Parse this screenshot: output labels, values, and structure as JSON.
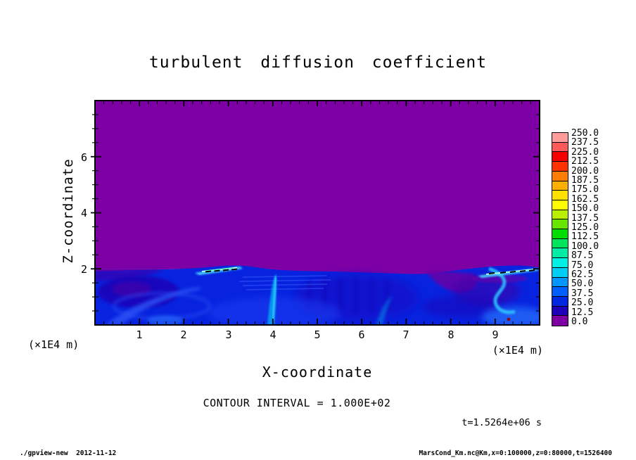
{
  "title": "turbulent diffusion coefficient",
  "axes": {
    "x": {
      "label": "X-coordinate",
      "unit_left": "(×1E4 m)",
      "unit_right": "(×1E4 m)",
      "ticks": [
        "1",
        "2",
        "3",
        "4",
        "5",
        "6",
        "7",
        "8",
        "9"
      ]
    },
    "y": {
      "label": "Z-coordinate",
      "ticks": [
        "6",
        "4",
        "2"
      ]
    }
  },
  "annotations": {
    "contour_interval": "CONTOUR INTERVAL = 1.000E+02",
    "time": "t=1.5264e+06 s"
  },
  "footer": {
    "left": "./gpview-new  2012-11-12",
    "right": "MarsCond_Km.nc@Km,x=0:100000,z=0:80000,t=1526400"
  },
  "colorbar": {
    "labels": [
      "250.0",
      "237.5",
      "225.0",
      "212.5",
      "200.0",
      "187.5",
      "175.0",
      "162.5",
      "150.0",
      "137.5",
      "125.0",
      "112.5",
      "100.0",
      "87.5",
      "75.0",
      "62.5",
      "50.0",
      "37.5",
      "25.0",
      "12.5",
      "0.0"
    ],
    "colors": [
      "#FF9B9B",
      "#FF5A5A",
      "#F50000",
      "#FF3200",
      "#FF7D00",
      "#FFAF00",
      "#FFE100",
      "#FFFF00",
      "#B9F000",
      "#69E600",
      "#00DC00",
      "#00E55A",
      "#00EBA5",
      "#00F0E6",
      "#00CDF5",
      "#0096FF",
      "#0060FF",
      "#0028E1",
      "#1E00B9",
      "#7D00A5"
    ]
  },
  "chart_data": {
    "type": "heatmap",
    "title": "turbulent diffusion coefficient",
    "xlabel": "X-coordinate",
    "ylabel": "Z-coordinate",
    "x_unit": "(×1E4 m)",
    "y_unit": "(×1E4 m)",
    "xlim": [
      0,
      10
    ],
    "ylim": [
      0,
      8
    ],
    "x_ticks": [
      1,
      2,
      3,
      4,
      5,
      6,
      7,
      8,
      9
    ],
    "x_minor_step": 0.2,
    "y_ticks": [
      2,
      4,
      6
    ],
    "y_minor_step": 0.5,
    "contour_interval": 100.0,
    "time_seconds": 1526400,
    "levels": [
      0,
      12.5,
      25,
      37.5,
      50,
      62.5,
      75,
      87.5,
      100,
      112.5,
      125,
      137.5,
      150,
      162.5,
      175,
      187.5,
      200,
      212.5,
      225,
      237.5,
      250
    ],
    "background_color": "#7D00A5",
    "field_summary": {
      "upper_region": {
        "z_range_x1E4m": [
          2,
          8
        ],
        "value": 0,
        "color": "#7D00A5",
        "note": "uniform zero diffusion coefficient above boundary layer"
      },
      "boundary_layer": {
        "z_range_x1E4m": [
          0,
          2
        ],
        "value_range": [
          0,
          100
        ],
        "note": "turbulent eddies, mostly 12.5-62.5 (blues) with cyan plumes"
      },
      "maxima": [
        {
          "x_x1E4m": 2.6,
          "z_x1E4m": 2.0,
          "value_range": [
            100,
            200
          ],
          "note": "bright cyan streak with black contour dashes at layer top"
        },
        {
          "x_x1E4m": 9.0,
          "z_x1E4m": 2.0,
          "value_range": [
            100,
            200
          ],
          "note": "bright cyan streak with black contour dashes at layer top"
        }
      ],
      "minima": [
        {
          "x_x1E4m": 1.0,
          "z_x1E4m": 0.9,
          "note": "dark indigo/purple eddy core"
        },
        {
          "x_x1E4m": 7.9,
          "z_x1E4m": 1.7,
          "note": "purple intrusion of near-zero values into the layer"
        }
      ]
    }
  }
}
